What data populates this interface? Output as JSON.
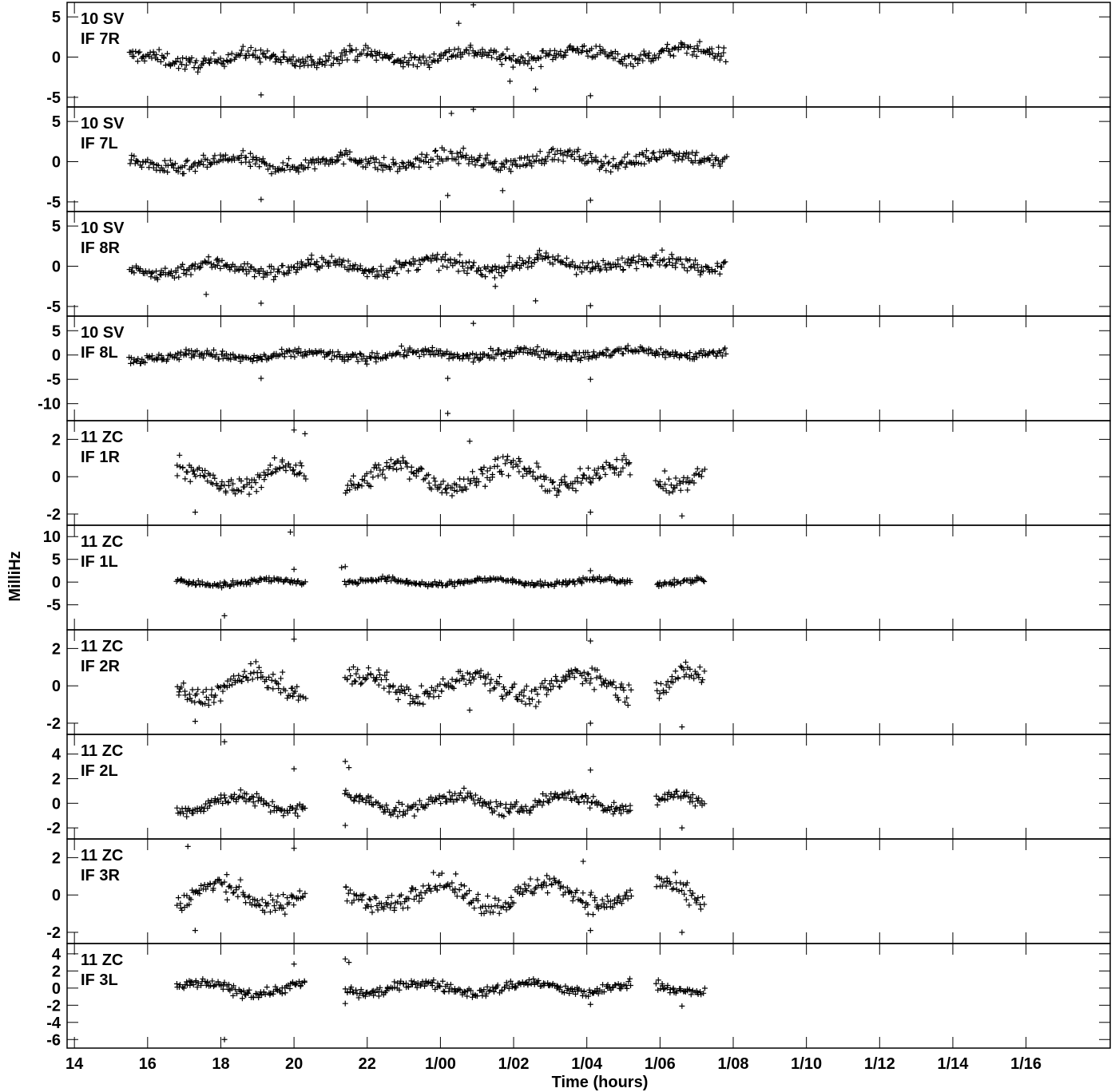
{
  "chart_data": {
    "type": "scatter",
    "xlabel": "Time (hours)",
    "ylabel": "MilliHz",
    "x_tick_labels": [
      "14",
      "16",
      "18",
      "20",
      "22",
      "1/00",
      "1/02",
      "1/04",
      "1/06",
      "1/08",
      "1/10",
      "1/12",
      "1/14",
      "1/16"
    ],
    "x_unit": "hours from 0h of day 1",
    "xlim": [
      -10.2,
      18.3
    ],
    "panels": [
      {
        "station": "10 SV",
        "if": "IF 7R",
        "ylim": [
          -6.2,
          6.8
        ],
        "yticks": [
          -5,
          0,
          5
        ],
        "t_start": -8.5,
        "t_end": 7.8,
        "drift": 1.6,
        "spread": 0.9,
        "outliers": [
          [
            0.9,
            6.5
          ],
          [
            0.5,
            4.2
          ],
          [
            -4.9,
            -4.7
          ],
          [
            4.1,
            -4.8
          ],
          [
            2.6,
            -4.0
          ],
          [
            1.9,
            -3.0
          ]
        ]
      },
      {
        "station": "10 SV",
        "if": "IF 7L",
        "ylim": [
          -6.2,
          6.8
        ],
        "yticks": [
          -5,
          0,
          5
        ],
        "t_start": -8.5,
        "t_end": 7.8,
        "drift": 1.6,
        "spread": 0.9,
        "outliers": [
          [
            0.9,
            6.5
          ],
          [
            0.3,
            6.0
          ],
          [
            -4.9,
            -4.7
          ],
          [
            4.1,
            -4.8
          ],
          [
            0.2,
            -4.2
          ],
          [
            1.7,
            -3.6
          ]
        ]
      },
      {
        "station": "10 SV",
        "if": "IF 8R",
        "ylim": [
          -6.2,
          6.8
        ],
        "yticks": [
          -5,
          0,
          5
        ],
        "t_start": -8.5,
        "t_end": 7.8,
        "drift": 1.6,
        "spread": 0.9,
        "outliers": [
          [
            -4.9,
            -4.6
          ],
          [
            4.1,
            -4.9
          ],
          [
            2.6,
            -4.3
          ],
          [
            -6.4,
            -3.5
          ],
          [
            1.5,
            -2.5
          ]
        ]
      },
      {
        "station": "10 SV",
        "if": "IF 8L",
        "ylim": [
          -13.5,
          8.0
        ],
        "yticks": [
          -10,
          -5,
          0,
          5
        ],
        "t_start": -8.5,
        "t_end": 7.8,
        "drift": 1.6,
        "spread": 1.0,
        "outliers": [
          [
            0.2,
            -12.0
          ],
          [
            0.2,
            -4.8
          ],
          [
            -4.9,
            -4.8
          ],
          [
            4.1,
            -5.0
          ],
          [
            0.9,
            6.5
          ]
        ]
      },
      {
        "station": "11 ZC",
        "if": "IF 1R",
        "ylim": [
          -2.6,
          3.0
        ],
        "yticks": [
          -2,
          0,
          2
        ],
        "segments": [
          [
            -7.2,
            -3.7
          ],
          [
            -2.6,
            5.2
          ],
          [
            5.9,
            7.2
          ]
        ],
        "drift": 0.3,
        "spread": 0.55,
        "outliers": [
          [
            -4.0,
            2.5
          ],
          [
            -3.7,
            2.3
          ],
          [
            -6.7,
            -1.9
          ],
          [
            4.1,
            -1.9
          ],
          [
            6.6,
            -2.1
          ],
          [
            0.8,
            1.9
          ]
        ]
      },
      {
        "station": "11 ZC",
        "if": "IF 1L",
        "ylim": [
          -10.5,
          12.5
        ],
        "yticks": [
          -5,
          0,
          5,
          10
        ],
        "segments": [
          [
            -7.2,
            -3.7
          ],
          [
            -2.6,
            5.2
          ],
          [
            5.9,
            7.2
          ]
        ],
        "drift": 0.2,
        "spread": 0.6,
        "outliers": [
          [
            -4.1,
            11.0
          ],
          [
            -5.9,
            -7.4
          ],
          [
            -2.6,
            3.4
          ],
          [
            -2.7,
            3.2
          ],
          [
            -4.0,
            2.8
          ],
          [
            4.1,
            2.5
          ]
        ]
      },
      {
        "station": "11 ZC",
        "if": "IF 2R",
        "ylim": [
          -2.6,
          3.0
        ],
        "yticks": [
          -2,
          0,
          2
        ],
        "segments": [
          [
            -7.2,
            -3.7
          ],
          [
            -2.6,
            5.2
          ],
          [
            5.9,
            7.2
          ]
        ],
        "drift": 0.3,
        "spread": 0.55,
        "outliers": [
          [
            -4.0,
            2.5
          ],
          [
            -6.7,
            -1.9
          ],
          [
            4.1,
            -2.0
          ],
          [
            6.6,
            -2.2
          ],
          [
            4.1,
            2.4
          ],
          [
            0.8,
            -1.3
          ]
        ]
      },
      {
        "station": "11 ZC",
        "if": "IF 2L",
        "ylim": [
          -2.9,
          5.6
        ],
        "yticks": [
          -2,
          0,
          2,
          4
        ],
        "segments": [
          [
            -7.2,
            -3.7
          ],
          [
            -2.6,
            5.2
          ],
          [
            5.9,
            7.2
          ]
        ],
        "drift": 0.3,
        "spread": 0.55,
        "outliers": [
          [
            -5.9,
            5.0
          ],
          [
            -2.6,
            3.4
          ],
          [
            -2.5,
            2.9
          ],
          [
            -4.0,
            2.8
          ],
          [
            4.1,
            2.7
          ],
          [
            -2.6,
            -1.8
          ],
          [
            6.6,
            -2.0
          ]
        ]
      },
      {
        "station": "11 ZC",
        "if": "IF 3R",
        "ylim": [
          -2.6,
          3.0
        ],
        "yticks": [
          -2,
          0,
          2
        ],
        "segments": [
          [
            -7.2,
            -3.7
          ],
          [
            -2.6,
            5.2
          ],
          [
            5.9,
            7.2
          ]
        ],
        "drift": 0.3,
        "spread": 0.55,
        "outliers": [
          [
            -6.9,
            2.6
          ],
          [
            -4.0,
            2.5
          ],
          [
            -6.7,
            -1.9
          ],
          [
            4.1,
            -1.9
          ],
          [
            6.6,
            -2.0
          ],
          [
            3.9,
            1.8
          ]
        ]
      },
      {
        "station": "11 ZC",
        "if": "IF 3L",
        "ylim": [
          -7.0,
          5.2
        ],
        "yticks": [
          -6,
          -4,
          -2,
          0,
          2,
          4
        ],
        "segments": [
          [
            -7.2,
            -3.7
          ],
          [
            -2.6,
            5.2
          ],
          [
            5.9,
            7.2
          ]
        ],
        "drift": 0.3,
        "spread": 0.6,
        "outliers": [
          [
            -5.9,
            -6.0
          ],
          [
            -2.6,
            3.4
          ],
          [
            -2.5,
            3.0
          ],
          [
            -4.0,
            2.8
          ],
          [
            -2.6,
            -1.8
          ],
          [
            4.1,
            -1.9
          ],
          [
            6.6,
            -2.1
          ]
        ]
      }
    ]
  }
}
